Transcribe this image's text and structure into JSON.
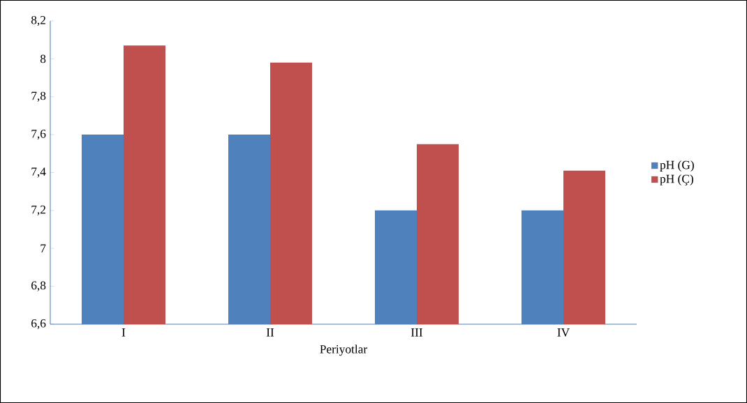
{
  "chart_data": {
    "type": "bar",
    "xlabel": "Periyotlar",
    "categories": [
      "I",
      "II",
      "III",
      "IV"
    ],
    "series": [
      {
        "name": "pH (G)",
        "color": "#4f81bd",
        "values": [
          7.6,
          7.6,
          7.2,
          7.2
        ]
      },
      {
        "name": "pH (Ç)",
        "color": "#c0504d",
        "values": [
          8.07,
          7.98,
          7.55,
          7.41
        ]
      }
    ],
    "ylim": [
      6.6,
      8.2
    ],
    "yticks": [
      {
        "value": 6.6,
        "label": "6,6"
      },
      {
        "value": 6.8,
        "label": "6,8"
      },
      7,
      {
        "value": 7.2,
        "label": "7,2"
      },
      {
        "value": 7.4,
        "label": "7,4"
      },
      {
        "value": 7.6,
        "label": "7,6"
      },
      {
        "value": 7.8,
        "label": "7,8"
      },
      8,
      {
        "value": 8.2,
        "label": "8,2"
      }
    ],
    "legend": "right"
  }
}
